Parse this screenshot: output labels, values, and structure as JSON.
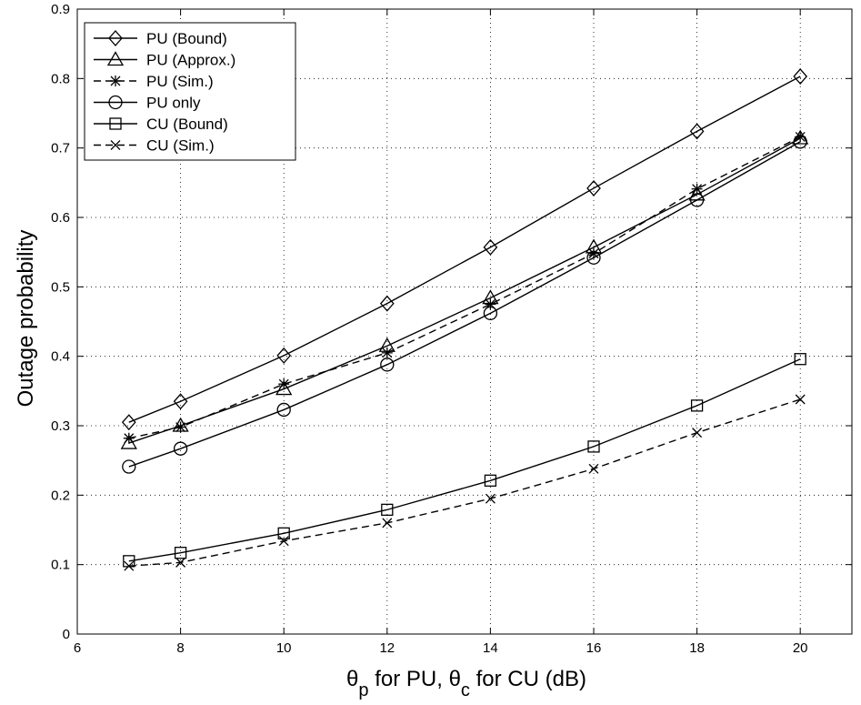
{
  "chart_data": {
    "type": "line",
    "title": "",
    "xlabel": {
      "theta": "θ",
      "sub_p": "p",
      "mid": " for PU, ",
      "sub_c": "c",
      "tail": " for CU (dB)"
    },
    "ylabel": "Outage probability",
    "xlim": [
      6,
      21
    ],
    "ylim": [
      0,
      0.9
    ],
    "xticks": [
      6,
      8,
      10,
      12,
      14,
      16,
      18,
      20
    ],
    "yticks": [
      0,
      0.1,
      0.2,
      0.3,
      0.4,
      0.5,
      0.6,
      0.7,
      0.8,
      0.9
    ],
    "grid": true,
    "legend_position": "top-left",
    "x": [
      7,
      8,
      10,
      12,
      14,
      16,
      18,
      20
    ],
    "series": [
      {
        "name": "PU (Bound)",
        "marker": "diamond",
        "line": "solid",
        "color": "#000000",
        "values": [
          0.305,
          0.335,
          0.401,
          0.476,
          0.557,
          0.642,
          0.724,
          0.803
        ]
      },
      {
        "name": "PU (Approx.)",
        "marker": "triangle",
        "line": "solid",
        "color": "#000000",
        "values": [
          0.275,
          0.3,
          0.353,
          0.415,
          0.484,
          0.557,
          0.633,
          0.714
        ]
      },
      {
        "name": "PU (Sim.)",
        "marker": "asterisk",
        "line": "dashed",
        "color": "#000000",
        "values": [
          0.282,
          0.298,
          0.36,
          0.405,
          0.475,
          0.548,
          0.641,
          0.716
        ]
      },
      {
        "name": "PU only",
        "marker": "circle",
        "line": "solid",
        "color": "#000000",
        "values": [
          0.241,
          0.267,
          0.323,
          0.388,
          0.462,
          0.542,
          0.625,
          0.709
        ]
      },
      {
        "name": "CU (Bound)",
        "marker": "square",
        "line": "solid",
        "color": "#000000",
        "values": [
          0.105,
          0.117,
          0.145,
          0.179,
          0.221,
          0.27,
          0.329,
          0.396
        ]
      },
      {
        "name": "CU (Sim.)",
        "marker": "x",
        "line": "dashed",
        "color": "#000000",
        "values": [
          0.098,
          0.103,
          0.134,
          0.16,
          0.195,
          0.238,
          0.29,
          0.338
        ]
      }
    ]
  }
}
